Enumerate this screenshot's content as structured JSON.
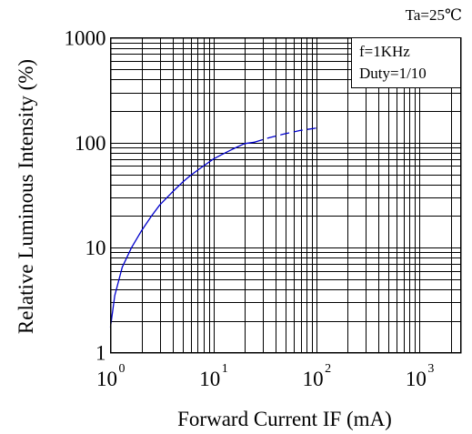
{
  "chart_data": {
    "type": "line",
    "title": "",
    "xlabel": "Forward Current IF (mA)",
    "ylabel": "Relative Luminous Intensity (%)",
    "x_scale": "log",
    "y_scale": "log",
    "xlim": [
      1,
      2500
    ],
    "ylim": [
      1,
      1000
    ],
    "grid": true,
    "x_ticks": [
      {
        "value": 1,
        "base": "10",
        "exp": "0"
      },
      {
        "value": 10,
        "base": "10",
        "exp": "1"
      },
      {
        "value": 100,
        "base": "10",
        "exp": "2"
      },
      {
        "value": 1000,
        "base": "10",
        "exp": "3"
      }
    ],
    "y_ticks": [
      {
        "value": 1,
        "label": "1"
      },
      {
        "value": 10,
        "label": "10"
      },
      {
        "value": 100,
        "label": "100"
      },
      {
        "value": 1000,
        "label": "1000"
      }
    ],
    "annotations": {
      "top_right": "Ta=25℃",
      "legend_lines": [
        "f=1KHz",
        "Duty=1/10"
      ]
    },
    "series": [
      {
        "color": "#0000cc",
        "style": "solid",
        "x": [
          1,
          1.1,
          1.3,
          1.6,
          2,
          2.5,
          3,
          4,
          5,
          6,
          8,
          10,
          12,
          15,
          20,
          25
        ],
        "y": [
          1.75,
          3.5,
          6.5,
          10,
          14.5,
          20,
          25.5,
          34,
          42,
          49,
          60,
          70,
          77,
          86,
          98,
          101
        ]
      },
      {
        "color": "#0000cc",
        "style": "dashed",
        "x": [
          25,
          35,
          50,
          70,
          100,
          110
        ],
        "y": [
          101,
          112,
          122,
          131,
          138,
          140
        ]
      }
    ]
  }
}
